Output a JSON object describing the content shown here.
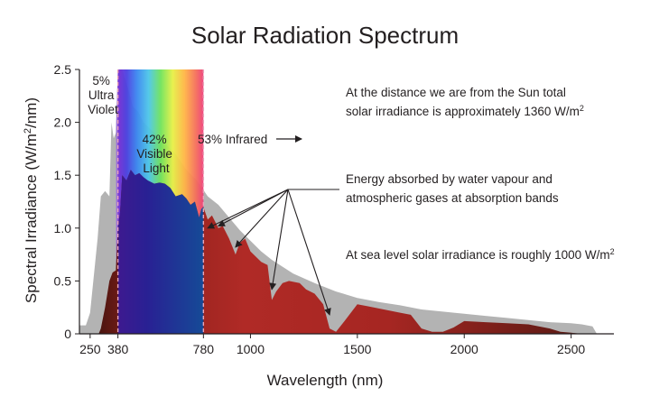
{
  "chart_data": {
    "type": "area",
    "title": "Solar Radiation Spectrum",
    "xlabel": "Wavelength (nm)",
    "ylabel_parts": [
      "Spectral Irradiance (W/m",
      "2",
      "/nm)"
    ],
    "xlim": [
      200,
      2700
    ],
    "ylim": [
      0,
      2.5
    ],
    "x_ticks": [
      250,
      380,
      780,
      1000,
      1500,
      2000,
      2500
    ],
    "x_tick_labels": [
      "250",
      "380",
      "780",
      "1000",
      "1500",
      "2000",
      "2500"
    ],
    "y_ticks": [
      0,
      0.5,
      1.0,
      1.5,
      2.0,
      2.5
    ],
    "y_tick_labels": [
      "0",
      "0.5",
      "1.0",
      "1.5",
      "2.0",
      "2.5"
    ],
    "colors": {
      "top_of_atmosphere": "#b3b3b3",
      "sea_level_dark": "#4a1510",
      "sea_level_red": "#b02a26",
      "marker_line": "#e8a5b8",
      "text": "#231f20"
    },
    "series": [
      {
        "points": [
          [
            200,
            0.08
          ],
          [
            230,
            0.08
          ],
          [
            250,
            0.2
          ],
          [
            285,
            0.9
          ],
          [
            300,
            1.3
          ],
          [
            320,
            1.35
          ],
          [
            340,
            1.3
          ],
          [
            350,
            2.0
          ],
          [
            360,
            1.85
          ],
          [
            370,
            1.9
          ],
          [
            380,
            2.5
          ],
          [
            400,
            2.5
          ],
          [
            430,
            2.3
          ],
          [
            450,
            2.15
          ],
          [
            475,
            2.1
          ],
          [
            500,
            2.0
          ],
          [
            525,
            1.95
          ],
          [
            550,
            1.9
          ],
          [
            575,
            1.85
          ],
          [
            600,
            1.8
          ],
          [
            650,
            1.7
          ],
          [
            700,
            1.55
          ],
          [
            750,
            1.45
          ],
          [
            800,
            1.3
          ],
          [
            850,
            1.22
          ],
          [
            900,
            1.1
          ],
          [
            950,
            0.98
          ],
          [
            1000,
            0.88
          ],
          [
            1050,
            0.78
          ],
          [
            1100,
            0.7
          ],
          [
            1200,
            0.57
          ],
          [
            1300,
            0.48
          ],
          [
            1400,
            0.4
          ],
          [
            1500,
            0.34
          ],
          [
            1600,
            0.3
          ],
          [
            1700,
            0.27
          ],
          [
            1800,
            0.23
          ],
          [
            1900,
            0.21
          ],
          [
            2000,
            0.19
          ],
          [
            2100,
            0.17
          ],
          [
            2200,
            0.15
          ],
          [
            2300,
            0.13
          ],
          [
            2400,
            0.11
          ],
          [
            2500,
            0.1
          ],
          [
            2550,
            0.09
          ],
          [
            2600,
            0.07
          ],
          [
            2620,
            0.0
          ]
        ]
      },
      {
        "points": [
          [
            290,
            0.0
          ],
          [
            300,
            0.05
          ],
          [
            320,
            0.25
          ],
          [
            340,
            0.5
          ],
          [
            355,
            0.58
          ],
          [
            370,
            0.6
          ],
          [
            380,
            1.0
          ],
          [
            390,
            1.15
          ],
          [
            400,
            1.5
          ],
          [
            420,
            1.45
          ],
          [
            440,
            1.55
          ],
          [
            460,
            1.5
          ],
          [
            480,
            1.52
          ],
          [
            500,
            1.48
          ],
          [
            520,
            1.45
          ],
          [
            550,
            1.42
          ],
          [
            575,
            1.43
          ],
          [
            600,
            1.42
          ],
          [
            625,
            1.38
          ],
          [
            650,
            1.3
          ],
          [
            680,
            1.32
          ],
          [
            700,
            1.28
          ],
          [
            720,
            1.22
          ],
          [
            740,
            1.25
          ],
          [
            760,
            1.1
          ],
          [
            770,
            1.18
          ],
          [
            780,
            1.2
          ],
          [
            800,
            1.08
          ],
          [
            820,
            1.12
          ],
          [
            850,
            1.0
          ],
          [
            870,
            1.02
          ],
          [
            900,
            0.9
          ],
          [
            930,
            0.75
          ],
          [
            950,
            0.86
          ],
          [
            975,
            0.9
          ],
          [
            1000,
            0.78
          ],
          [
            1050,
            0.68
          ],
          [
            1080,
            0.65
          ],
          [
            1100,
            0.32
          ],
          [
            1120,
            0.4
          ],
          [
            1150,
            0.48
          ],
          [
            1180,
            0.5
          ],
          [
            1230,
            0.48
          ],
          [
            1260,
            0.42
          ],
          [
            1300,
            0.38
          ],
          [
            1340,
            0.28
          ],
          [
            1370,
            0.05
          ],
          [
            1400,
            0.02
          ],
          [
            1440,
            0.12
          ],
          [
            1500,
            0.28
          ],
          [
            1550,
            0.26
          ],
          [
            1600,
            0.24
          ],
          [
            1650,
            0.22
          ],
          [
            1700,
            0.2
          ],
          [
            1750,
            0.18
          ],
          [
            1800,
            0.05
          ],
          [
            1850,
            0.02
          ],
          [
            1900,
            0.02
          ],
          [
            1950,
            0.06
          ],
          [
            2000,
            0.12
          ],
          [
            2100,
            0.11
          ],
          [
            2200,
            0.1
          ],
          [
            2300,
            0.09
          ],
          [
            2400,
            0.05
          ],
          [
            2450,
            0.02
          ],
          [
            2500,
            0.01
          ],
          [
            2550,
            0.0
          ]
        ]
      }
    ],
    "bands": {
      "uv": {
        "label_lines": [
          "5%",
          "Ultra",
          "Violet"
        ],
        "start": 380
      },
      "visible": {
        "label_lines": [
          "42%",
          "Visible",
          "Light"
        ],
        "start": 380,
        "end": 780
      },
      "infrared": {
        "label": "53% Infrared"
      }
    },
    "annotations": {
      "tsi_lines": [
        "At the distance we are from the Sun total",
        "solar irradiance is approximately 1360 W/m"
      ],
      "tsi_sup": "2",
      "absorption_lines": [
        "Energy absorbed by water vapour and",
        "atmospheric gases at absorption bands"
      ],
      "absorption_targets": [
        [
          800,
          1.0
        ],
        [
          850,
          1.02
        ],
        [
          930,
          0.82
        ],
        [
          1100,
          0.42
        ],
        [
          1370,
          0.18
        ]
      ],
      "sea_level_line": "At sea level solar irradiance is roughly 1000 W/m",
      "sea_level_sup": "2"
    }
  }
}
